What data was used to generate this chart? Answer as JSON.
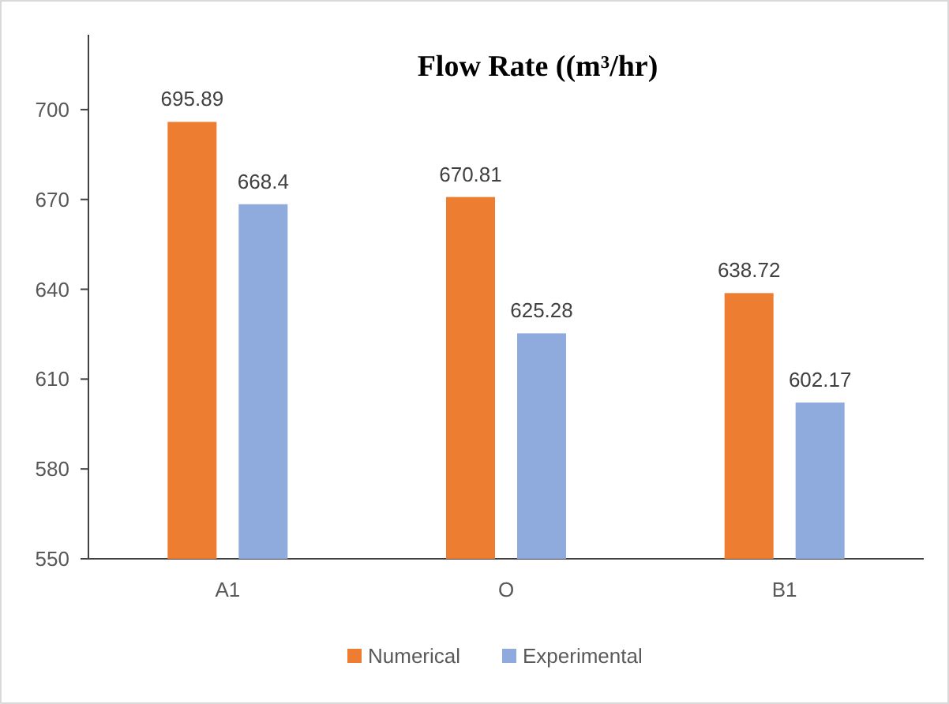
{
  "chart_data": {
    "type": "bar",
    "title": "Flow Rate ((m³/hr)",
    "categories": [
      "A1",
      "O",
      "B1"
    ],
    "series": [
      {
        "name": "Numerical",
        "color": "#ed7d31",
        "values": [
          695.89,
          670.81,
          638.72
        ]
      },
      {
        "name": "Experimental",
        "color": "#8faadc",
        "values": [
          668.4,
          625.28,
          602.17
        ]
      }
    ],
    "ylim": [
      550,
      725
    ],
    "yticks": [
      550,
      580,
      610,
      640,
      670,
      700
    ],
    "data_labels": true,
    "grid": false,
    "legend": "bottom"
  }
}
